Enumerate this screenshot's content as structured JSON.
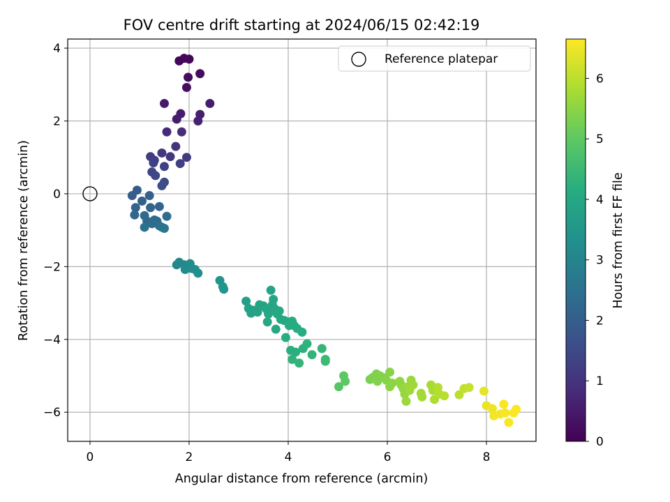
{
  "chart_data": {
    "type": "scatter",
    "title": "FOV centre drift starting at 2024/06/15 02:42:19",
    "xlabel": "Angular distance from reference (arcmin)",
    "ylabel": "Rotation from reference (arcmin)",
    "xlim": [
      -0.45,
      9.0
    ],
    "ylim": [
      -6.8,
      4.25
    ],
    "xticks": [
      0,
      2,
      4,
      6,
      8
    ],
    "yticks": [
      -6,
      -4,
      -2,
      0,
      2,
      4
    ],
    "x_tick_labels": [
      "0",
      "2",
      "4",
      "6",
      "8"
    ],
    "y_tick_labels": [
      "−6",
      "−4",
      "−2",
      "0",
      "2",
      "4"
    ],
    "grid": true,
    "legend": {
      "position": "upper-right",
      "entries": [
        "Reference platepar"
      ]
    },
    "colorbar": {
      "label": "Hours from first FF file",
      "colormap": "viridis",
      "range": [
        0,
        6.65
      ],
      "ticks": [
        0,
        1,
        2,
        3,
        4,
        5,
        6
      ],
      "tick_labels": [
        "0",
        "1",
        "2",
        "3",
        "4",
        "5",
        "6"
      ]
    },
    "reference": {
      "x": 0,
      "y": 0,
      "name": "Reference platepar"
    },
    "series": [
      {
        "points": [
          [
            1.8,
            3.65,
            0.1
          ],
          [
            1.9,
            3.72,
            0.1
          ],
          [
            2.0,
            3.7,
            0.12
          ],
          [
            1.98,
            3.2,
            0.2
          ],
          [
            1.95,
            2.92,
            0.25
          ],
          [
            2.22,
            3.3,
            0.2
          ],
          [
            1.5,
            2.48,
            0.5
          ],
          [
            1.83,
            2.2,
            0.55
          ],
          [
            1.75,
            2.05,
            0.55
          ],
          [
            2.22,
            2.18,
            0.6
          ],
          [
            2.42,
            2.48,
            0.55
          ],
          [
            2.18,
            2.0,
            0.65
          ],
          [
            1.55,
            1.7,
            0.8
          ],
          [
            1.85,
            1.7,
            0.85
          ],
          [
            1.73,
            1.3,
            1.0
          ],
          [
            1.45,
            1.12,
            1.1
          ],
          [
            1.62,
            1.02,
            1.1
          ],
          [
            1.22,
            1.02,
            1.2
          ],
          [
            1.3,
            0.92,
            1.2
          ],
          [
            1.95,
            1.0,
            1.15
          ],
          [
            1.28,
            0.85,
            1.3
          ],
          [
            1.82,
            0.83,
            1.25
          ],
          [
            1.5,
            0.75,
            1.3
          ],
          [
            1.25,
            0.6,
            1.4
          ],
          [
            1.32,
            0.5,
            1.45
          ],
          [
            1.5,
            0.32,
            1.55
          ],
          [
            1.45,
            0.22,
            1.6
          ],
          [
            0.95,
            0.1,
            1.95
          ],
          [
            0.85,
            -0.05,
            2.0
          ],
          [
            1.05,
            -0.2,
            2.05
          ],
          [
            1.2,
            -0.05,
            2.05
          ],
          [
            0.92,
            -0.38,
            2.1
          ],
          [
            1.22,
            -0.38,
            2.15
          ],
          [
            1.4,
            -0.35,
            2.15
          ],
          [
            0.9,
            -0.58,
            2.2
          ],
          [
            1.1,
            -0.6,
            2.3
          ],
          [
            1.15,
            -0.75,
            2.3
          ],
          [
            1.3,
            -0.72,
            2.35
          ],
          [
            1.35,
            -0.75,
            2.35
          ],
          [
            1.55,
            -0.62,
            2.4
          ],
          [
            1.25,
            -0.82,
            2.4
          ],
          [
            1.4,
            -0.88,
            2.45
          ],
          [
            1.1,
            -0.92,
            2.5
          ],
          [
            1.45,
            -0.92,
            2.55
          ],
          [
            1.5,
            -0.95,
            2.6
          ],
          [
            1.75,
            -1.95,
            3.05
          ],
          [
            1.8,
            -1.88,
            3.1
          ],
          [
            1.9,
            -1.95,
            3.15
          ],
          [
            1.92,
            -2.08,
            3.2
          ],
          [
            2.02,
            -1.92,
            3.2
          ],
          [
            2.05,
            -2.05,
            3.25
          ],
          [
            2.12,
            -2.08,
            3.3
          ],
          [
            2.18,
            -2.18,
            3.3
          ],
          [
            2.62,
            -2.38,
            3.45
          ],
          [
            2.68,
            -2.55,
            3.5
          ],
          [
            2.7,
            -2.62,
            3.5
          ],
          [
            3.15,
            -2.95,
            3.75
          ],
          [
            3.2,
            -3.15,
            3.8
          ],
          [
            3.25,
            -3.28,
            3.8
          ],
          [
            3.3,
            -3.2,
            3.85
          ],
          [
            3.38,
            -3.25,
            3.85
          ],
          [
            3.42,
            -3.05,
            3.9
          ],
          [
            3.5,
            -3.08,
            3.9
          ],
          [
            3.55,
            -3.15,
            3.9
          ],
          [
            3.58,
            -3.2,
            3.95
          ],
          [
            3.6,
            -3.3,
            3.95
          ],
          [
            3.65,
            -2.65,
            3.9
          ],
          [
            3.7,
            -2.9,
            3.95
          ],
          [
            3.68,
            -3.05,
            3.95
          ],
          [
            3.72,
            -3.15,
            3.95
          ],
          [
            3.78,
            -3.3,
            4.0
          ],
          [
            3.82,
            -3.22,
            4.0
          ],
          [
            3.85,
            -3.45,
            4.0
          ],
          [
            3.58,
            -3.52,
            4.0
          ],
          [
            3.75,
            -3.72,
            4.05
          ],
          [
            3.92,
            -3.48,
            4.05
          ],
          [
            4.0,
            -3.52,
            4.05
          ],
          [
            4.02,
            -3.62,
            4.1
          ],
          [
            4.08,
            -3.5,
            4.1
          ],
          [
            4.12,
            -3.62,
            4.1
          ],
          [
            4.18,
            -3.7,
            4.1
          ],
          [
            4.28,
            -3.8,
            4.15
          ],
          [
            3.95,
            -3.95,
            4.15
          ],
          [
            4.05,
            -4.3,
            4.2
          ],
          [
            4.15,
            -4.35,
            4.2
          ],
          [
            4.3,
            -4.25,
            4.25
          ],
          [
            4.38,
            -4.12,
            4.3
          ],
          [
            4.08,
            -4.55,
            4.3
          ],
          [
            4.22,
            -4.65,
            4.35
          ],
          [
            4.48,
            -4.42,
            4.35
          ],
          [
            4.68,
            -4.25,
            4.4
          ],
          [
            4.75,
            -4.55,
            4.5
          ],
          [
            4.75,
            -4.6,
            4.5
          ],
          [
            5.02,
            -5.3,
            4.9
          ],
          [
            5.12,
            -5.0,
            5.0
          ],
          [
            5.15,
            -5.15,
            5.0
          ],
          [
            5.65,
            -5.1,
            5.3
          ],
          [
            5.7,
            -5.05,
            5.35
          ],
          [
            5.78,
            -4.95,
            5.35
          ],
          [
            5.85,
            -5.0,
            5.4
          ],
          [
            5.8,
            -5.15,
            5.4
          ],
          [
            5.92,
            -5.05,
            5.4
          ],
          [
            5.98,
            -5.12,
            5.45
          ],
          [
            6.05,
            -4.9,
            5.45
          ],
          [
            6.05,
            -5.3,
            5.5
          ],
          [
            6.1,
            -5.2,
            5.5
          ],
          [
            6.25,
            -5.15,
            5.55
          ],
          [
            6.28,
            -5.25,
            5.55
          ],
          [
            6.32,
            -5.35,
            5.6
          ],
          [
            6.35,
            -5.5,
            5.6
          ],
          [
            6.38,
            -5.7,
            5.65
          ],
          [
            6.42,
            -5.3,
            5.65
          ],
          [
            6.48,
            -5.12,
            5.65
          ],
          [
            6.52,
            -5.25,
            5.7
          ],
          [
            6.45,
            -5.4,
            5.7
          ],
          [
            6.68,
            -5.48,
            5.75
          ],
          [
            6.7,
            -5.58,
            5.75
          ],
          [
            6.88,
            -5.25,
            5.8
          ],
          [
            6.92,
            -5.4,
            5.8
          ],
          [
            6.95,
            -5.65,
            5.85
          ],
          [
            7.02,
            -5.32,
            5.9
          ],
          [
            7.05,
            -5.5,
            5.9
          ],
          [
            7.15,
            -5.55,
            5.95
          ],
          [
            7.45,
            -5.52,
            6.0
          ],
          [
            7.55,
            -5.35,
            6.05
          ],
          [
            7.65,
            -5.32,
            6.1
          ],
          [
            7.95,
            -5.42,
            6.4
          ],
          [
            8.0,
            -5.82,
            6.45
          ],
          [
            8.12,
            -5.9,
            6.5
          ],
          [
            8.15,
            -6.1,
            6.55
          ],
          [
            8.28,
            -6.05,
            6.55
          ],
          [
            8.35,
            -5.78,
            6.6
          ],
          [
            8.38,
            -6.02,
            6.6
          ],
          [
            8.45,
            -6.28,
            6.6
          ],
          [
            8.55,
            -6.02,
            6.62
          ],
          [
            8.6,
            -5.92,
            6.62
          ]
        ]
      }
    ]
  }
}
